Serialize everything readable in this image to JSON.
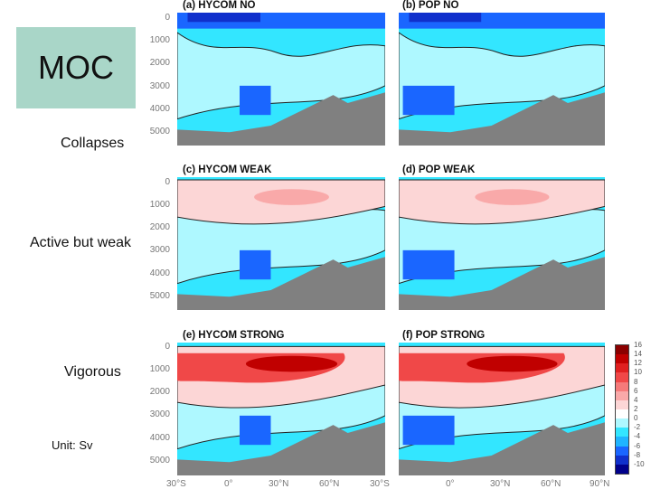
{
  "moc_label": "MOC",
  "rows": [
    "Collapses",
    "Active but weak",
    "Vigorous"
  ],
  "unit_label": "Unit: Sv",
  "panels": [
    {
      "title": "(a) HYCOM NO",
      "state": "collapse"
    },
    {
      "title": "(b) POP NO",
      "state": "collapse"
    },
    {
      "title": "(c) HYCOM WEAK",
      "state": "weak"
    },
    {
      "title": "(d) POP WEAK",
      "state": "weak"
    },
    {
      "title": "(e) HYCOM STRONG",
      "state": "strong"
    },
    {
      "title": "(f) POP STRONG",
      "state": "strong"
    }
  ],
  "depth_ticks": [
    "0",
    "1000",
    "2000",
    "3000",
    "4000",
    "5000"
  ],
  "lat_ticks": [
    "30°S",
    "0°",
    "30°N",
    "60°N",
    "90°N"
  ],
  "lat_tick_joint": "30°S",
  "colorbar": {
    "labels": [
      "16",
      "14",
      "12",
      "10",
      "8",
      "6",
      "4",
      "2",
      "0",
      "-2",
      "-4",
      "-6",
      "-8",
      "-10"
    ],
    "colors": [
      "#8b0000",
      "#c00000",
      "#e02020",
      "#f04848",
      "#f57a7a",
      "#f9a9a9",
      "#fcd6d6",
      "#ffffff",
      "#aef8ff",
      "#33e6ff",
      "#20b4ff",
      "#1a66ff",
      "#1030cc",
      "#00008b"
    ]
  }
}
